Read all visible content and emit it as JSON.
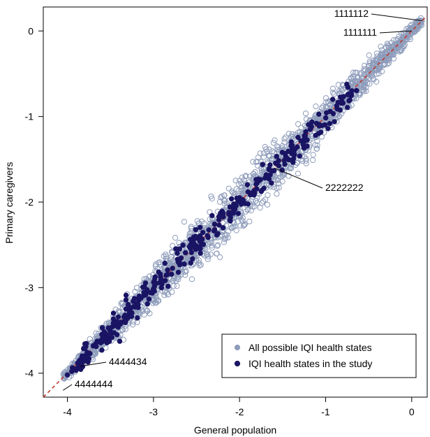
{
  "chart_data": {
    "type": "scatter",
    "xlabel": "General population",
    "ylabel": "Primary caregivers",
    "xlim": [
      -4.28,
      0.18
    ],
    "ylim": [
      -4.28,
      0.28
    ],
    "xticks": [
      -4,
      -3,
      -2,
      -1,
      0
    ],
    "yticks": [
      -4,
      -3,
      -2,
      -1,
      0
    ],
    "grid": false,
    "reference_line": {
      "from": [
        -4.28,
        -4.28
      ],
      "to": [
        0.18,
        0.18
      ],
      "style": "dashed",
      "color": "#c0392b"
    },
    "legend": {
      "position": "bottom-right",
      "entries": [
        "All possible IQI health states",
        "IQI health states in the study"
      ]
    },
    "colors": {
      "all_states": "#8e9cbb",
      "study_states": "#1a1464",
      "reference": "#c0392b"
    },
    "series": [
      {
        "name": "All possible IQI health states",
        "marker": "open-circle",
        "band": {
          "x_range": [
            -4.05,
            0.12
          ],
          "half_width_center": 0.32,
          "half_width_ends": 0.05,
          "count": 1800
        }
      },
      {
        "name": "IQI health states in the study",
        "marker": "filled-circle",
        "band": {
          "x_range": [
            -3.95,
            -0.6
          ],
          "half_width": 0.18,
          "count": 340
        },
        "points": [
          {
            "x": -4.0,
            "y": -4.02
          },
          {
            "x": -3.95,
            "y": -3.98
          },
          {
            "x": -3.9,
            "y": -3.95
          },
          {
            "x": -3.85,
            "y": -3.92
          },
          {
            "x": -3.75,
            "y": -3.83
          },
          {
            "x": -3.7,
            "y": -3.68
          },
          {
            "x": -3.6,
            "y": -3.73
          },
          {
            "x": -3.55,
            "y": -3.6
          }
        ]
      }
    ],
    "annotations": [
      {
        "label": "1111112",
        "x": 0.12,
        "y": 0.12
      },
      {
        "label": "1111111",
        "x": 0.0,
        "y": 0.0
      },
      {
        "label": "2222222",
        "x": -1.6,
        "y": -1.6
      },
      {
        "label": "4444434",
        "x": -3.85,
        "y": -3.92
      },
      {
        "label": "4444444",
        "x": -4.05,
        "y": -4.2
      }
    ]
  }
}
